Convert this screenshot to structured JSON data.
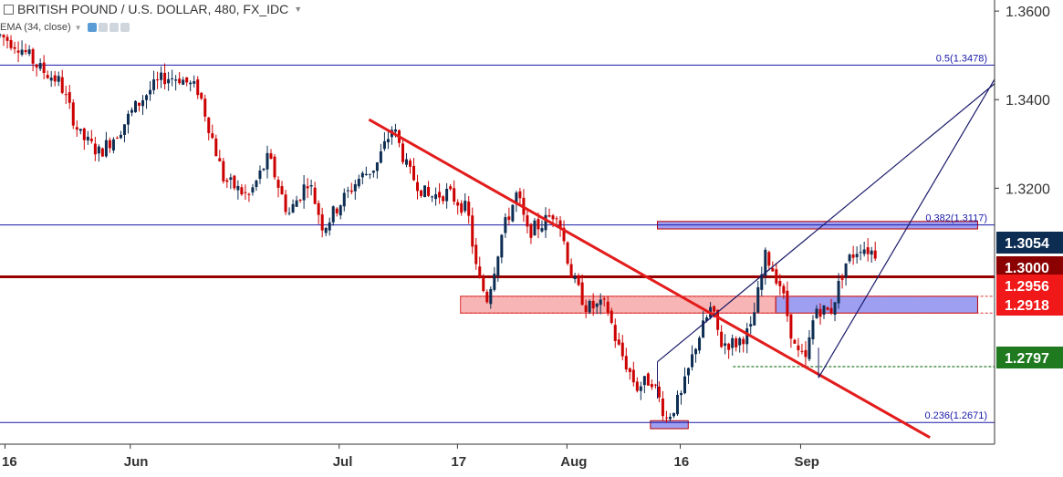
{
  "header": {
    "title": "BRITISH POUND / U.S. DOLLAR, 480, FX_IDC",
    "indicator": "EMA (34, close)"
  },
  "chart_data": {
    "type": "candlestick",
    "title": "BRITISH POUND / U.S. DOLLAR, 480, FX_IDC",
    "ylim": [
      1.2622,
      1.3625
    ],
    "yticks": [
      {
        "label": "1.3600",
        "value": 1.36
      },
      {
        "label": "1.3400",
        "value": 1.34
      },
      {
        "label": "1.3200",
        "value": 1.32
      }
    ],
    "xticks": [
      {
        "label": "16",
        "t": 0.005
      },
      {
        "label": "Jun",
        "t": 0.131
      },
      {
        "label": "Jul",
        "t": 0.341
      },
      {
        "label": "17",
        "t": 0.46
      },
      {
        "label": "Aug",
        "t": 0.57
      },
      {
        "label": "16",
        "t": 0.684
      },
      {
        "label": "Sep",
        "t": 0.805
      }
    ],
    "candles_close_path": [
      [
        0.0,
        1.3545
      ],
      [
        0.02,
        1.352
      ],
      [
        0.04,
        1.347
      ],
      [
        0.06,
        1.344
      ],
      [
        0.08,
        1.332
      ],
      [
        0.1,
        1.328
      ],
      [
        0.12,
        1.333
      ],
      [
        0.135,
        1.338
      ],
      [
        0.15,
        1.342
      ],
      [
        0.165,
        1.345
      ],
      [
        0.18,
        1.345
      ],
      [
        0.2,
        1.342
      ],
      [
        0.225,
        1.322
      ],
      [
        0.25,
        1.318
      ],
      [
        0.27,
        1.327
      ],
      [
        0.29,
        1.314
      ],
      [
        0.31,
        1.322
      ],
      [
        0.325,
        1.311
      ],
      [
        0.34,
        1.316
      ],
      [
        0.36,
        1.322
      ],
      [
        0.378,
        1.325
      ],
      [
        0.395,
        1.334
      ],
      [
        0.41,
        1.324
      ],
      [
        0.43,
        1.318
      ],
      [
        0.45,
        1.319
      ],
      [
        0.47,
        1.315
      ],
      [
        0.48,
        1.3
      ],
      [
        0.49,
        1.295
      ],
      [
        0.505,
        1.31
      ],
      [
        0.52,
        1.319
      ],
      [
        0.53,
        1.31
      ],
      [
        0.545,
        1.312
      ],
      [
        0.56,
        1.315
      ],
      [
        0.575,
        1.3
      ],
      [
        0.59,
        1.293
      ],
      [
        0.61,
        1.2935
      ],
      [
        0.62,
        1.285
      ],
      [
        0.64,
        1.275
      ],
      [
        0.655,
        1.277
      ],
      [
        0.67,
        1.268
      ],
      [
        0.685,
        1.273
      ],
      [
        0.7,
        1.285
      ],
      [
        0.715,
        1.293
      ],
      [
        0.725,
        1.285
      ],
      [
        0.74,
        1.285
      ],
      [
        0.755,
        1.288
      ],
      [
        0.77,
        1.305
      ],
      [
        0.785,
        1.298
      ],
      [
        0.8,
        1.283
      ],
      [
        0.81,
        1.281
      ],
      [
        0.82,
        1.293
      ],
      [
        0.835,
        1.292
      ],
      [
        0.85,
        1.303
      ],
      [
        0.865,
        1.307
      ],
      [
        0.88,
        1.3054
      ]
    ],
    "horizontal_lines": [
      {
        "name": "fib-0.5",
        "value": 1.3478,
        "label": "0.5(1.3478)",
        "color": "#1a1aa8"
      },
      {
        "name": "fib-0.382",
        "value": 1.3117,
        "label": "0.382(1.3117)",
        "color": "#1a1aa8"
      },
      {
        "name": "fib-0.236",
        "value": 1.2671,
        "label": "0.236(1.2671)",
        "color": "#1a1aa8"
      },
      {
        "name": "level-1.3000",
        "value": 1.3,
        "color": "#990000"
      }
    ],
    "zones": [
      {
        "name": "resistance-zone",
        "from": 1.3108,
        "to": 1.3125,
        "color": "#8e8ef0"
      },
      {
        "name": "support-zone-red",
        "from": 1.2918,
        "to": 1.2956,
        "color": "#f7a8a8"
      },
      {
        "name": "support-zone-blue",
        "from": 1.2918,
        "to": 1.2956,
        "color": "#8e8ef0"
      },
      {
        "name": "low-zone",
        "from": 1.2657,
        "to": 1.2675,
        "color": "#8e8ef0"
      }
    ],
    "price_labels": [
      {
        "text": "1.3054",
        "value": 1.3054,
        "bg": "#0d2d52"
      },
      {
        "text": "1.3000",
        "value": 1.3,
        "bg": "#8b0000"
      },
      {
        "text": "1.2956",
        "value": 1.2956,
        "bg": "#f01818"
      },
      {
        "text": "1.2918",
        "value": 1.2918,
        "bg": "#f01818"
      },
      {
        "text": "1.2797",
        "value": 1.2797,
        "bg": "#1f7a1f"
      }
    ],
    "trendline_red": {
      "from": [
        0.371,
        1.3355
      ],
      "to": [
        0.935,
        1.2637
      ]
    },
    "colors": {
      "bull": "#0d2d52",
      "bear": "#cc0000",
      "axis": "#333333"
    }
  }
}
